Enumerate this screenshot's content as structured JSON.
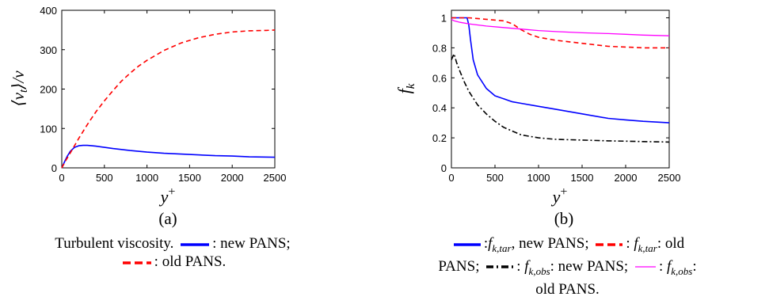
{
  "chart_data": [
    {
      "type": "line",
      "panel_label": "(a)",
      "ylabel": "⟨νt⟩/ν",
      "xlabel": "y+",
      "xlim": [
        0,
        2500
      ],
      "ylim": [
        0,
        400
      ],
      "xticks": [
        "0",
        "500",
        "1000",
        "1500",
        "2000",
        "2500"
      ],
      "yticks": [
        "0",
        "100",
        "200",
        "300",
        "400"
      ],
      "grid": false,
      "series": [
        {
          "name": "new PANS",
          "color": "#0000ff",
          "dash": "solid",
          "x": [
            0,
            30,
            60,
            100,
            150,
            200,
            250,
            300,
            350,
            400,
            500,
            600,
            800,
            1000,
            1200,
            1500,
            1800,
            2000,
            2200,
            2500
          ],
          "y": [
            0,
            14,
            28,
            42,
            52,
            56,
            57,
            57,
            56,
            55,
            52,
            49,
            44,
            40,
            37,
            34,
            31,
            30,
            28,
            27
          ]
        },
        {
          "name": "old PANS",
          "color": "#ff0000",
          "dash": "dashed",
          "x": [
            0,
            50,
            100,
            200,
            300,
            400,
            500,
            600,
            700,
            800,
            900,
            1000,
            1200,
            1400,
            1600,
            1800,
            2000,
            2200,
            2400,
            2500
          ],
          "y": [
            0,
            20,
            38,
            75,
            110,
            142,
            170,
            196,
            220,
            240,
            258,
            273,
            298,
            317,
            330,
            339,
            345,
            348,
            349,
            350
          ]
        }
      ]
    },
    {
      "type": "line",
      "panel_label": "(b)",
      "ylabel": "fk",
      "xlabel": "y+",
      "xlim": [
        0,
        2500
      ],
      "ylim": [
        0,
        1.05
      ],
      "xticks": [
        "0",
        "500",
        "1000",
        "1500",
        "2000",
        "2500"
      ],
      "yticks": [
        "0",
        "0.2",
        "0.4",
        "0.6",
        "0.8",
        "1"
      ],
      "grid": false,
      "series": [
        {
          "name": "fk,tar new PANS",
          "color": "#0000ff",
          "dash": "solid",
          "x": [
            0,
            100,
            180,
            200,
            220,
            250,
            300,
            400,
            500,
            600,
            700,
            800,
            1000,
            1200,
            1500,
            1800,
            2000,
            2200,
            2500
          ],
          "y": [
            1.0,
            1.0,
            1.0,
            0.95,
            0.85,
            0.72,
            0.62,
            0.53,
            0.48,
            0.46,
            0.44,
            0.43,
            0.41,
            0.39,
            0.36,
            0.33,
            0.32,
            0.31,
            0.3
          ]
        },
        {
          "name": "fk,tar old PANS",
          "color": "#ff0000",
          "dash": "dashed",
          "x": [
            0,
            200,
            400,
            600,
            700,
            800,
            900,
            1000,
            1200,
            1500,
            1800,
            2000,
            2200,
            2500
          ],
          "y": [
            1.0,
            1.0,
            0.99,
            0.98,
            0.96,
            0.92,
            0.89,
            0.87,
            0.85,
            0.83,
            0.81,
            0.805,
            0.8,
            0.8
          ]
        },
        {
          "name": "fk,obs new PANS",
          "color": "#000000",
          "dash": "dashdot",
          "x": [
            0,
            30,
            60,
            100,
            150,
            200,
            300,
            400,
            500,
            600,
            700,
            800,
            1000,
            1200,
            1500,
            1800,
            2000,
            2200,
            2500
          ],
          "y": [
            0.72,
            0.76,
            0.7,
            0.64,
            0.57,
            0.51,
            0.42,
            0.36,
            0.31,
            0.27,
            0.245,
            0.22,
            0.2,
            0.19,
            0.185,
            0.18,
            0.178,
            0.175,
            0.172
          ]
        },
        {
          "name": "fk,obs old PANS",
          "color": "#ff00ff",
          "dash": "solid",
          "x": [
            0,
            30,
            100,
            200,
            400,
            600,
            800,
            1000,
            1200,
            1500,
            1800,
            2000,
            2200,
            2500
          ],
          "y": [
            0.99,
            0.98,
            0.97,
            0.96,
            0.945,
            0.935,
            0.925,
            0.915,
            0.908,
            0.9,
            0.895,
            0.89,
            0.885,
            0.88
          ]
        }
      ]
    }
  ],
  "captions": {
    "a": {
      "t1": "Turbulent viscosity.",
      "t2": ":  new PANS;",
      "t3": ": old PANS."
    },
    "b": {
      "t1": ":",
      "t2": "k,tar",
      "t3": ",  new PANS;",
      "t4": ":",
      "t5": "k,tar",
      "t6": ": old",
      "t7": "PANS;",
      "t8": ":",
      "t9": "k,obs",
      "t10": ": new PANS;",
      "t11": ":",
      "t12": "k,obs",
      "t13": ":",
      "t14": "old PANS."
    },
    "f_symbol": "f"
  }
}
